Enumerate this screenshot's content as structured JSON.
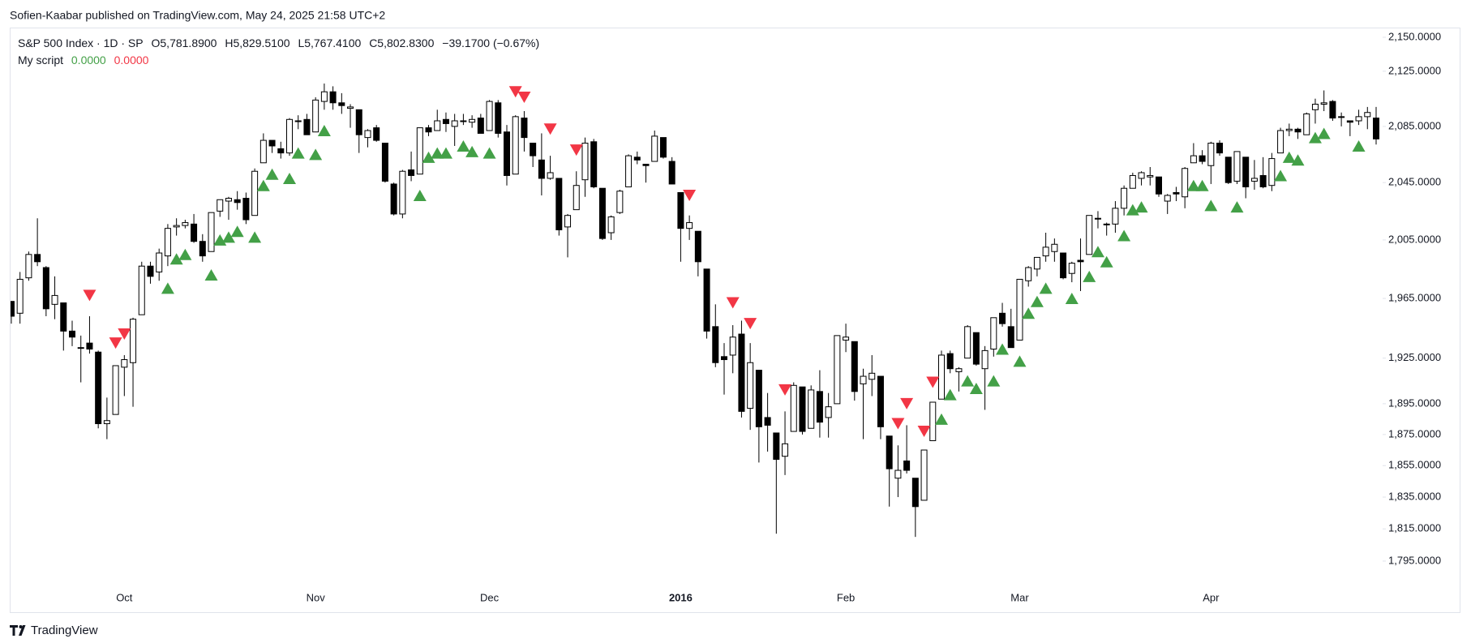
{
  "header": {
    "attribution": "Sofien-Kaabar published on TradingView.com, May 24, 2025 21:58 UTC+2",
    "brand": "TradingView"
  },
  "chart_data": {
    "type": "candlestick",
    "legend": {
      "symbol": "S&P 500 Index · 1D · SP",
      "open": "O5,781.8900",
      "high": "H5,829.5100",
      "low": "L5,767.4100",
      "close": "C5,802.8300",
      "change": "−39.1700 (−0.67%)"
    },
    "indicator": {
      "name": "My script",
      "values": [
        "0.0000",
        "0.0000"
      ],
      "colors": [
        "#43a047",
        "#f23645"
      ]
    },
    "up_color": "#ffffff",
    "down_color": "#000000",
    "border_color": "#000000",
    "log_scale": true,
    "grid": false,
    "ylim": [
      1779,
      2156
    ],
    "yticks": [
      {
        "value": 2150,
        "label": "2,150.0000"
      },
      {
        "value": 2125,
        "label": "2,125.0000"
      },
      {
        "value": 2085,
        "label": "2,085.0000"
      },
      {
        "value": 2045,
        "label": "2,045.0000"
      },
      {
        "value": 2005,
        "label": "2,005.0000"
      },
      {
        "value": 1965,
        "label": "1,965.0000"
      },
      {
        "value": 1925,
        "label": "1,925.0000"
      },
      {
        "value": 1895,
        "label": "1,895.0000"
      },
      {
        "value": 1875,
        "label": "1,875.0000"
      },
      {
        "value": 1855,
        "label": "1,855.0000"
      },
      {
        "value": 1835,
        "label": "1,835.0000"
      },
      {
        "value": 1815,
        "label": "1,815.0000"
      },
      {
        "value": 1795,
        "label": "1,795.0000"
      }
    ],
    "categories": [
      null,
      null,
      null,
      null,
      null,
      null,
      null,
      null,
      null,
      null,
      null,
      null,
      null,
      "Oct",
      null,
      null,
      null,
      null,
      null,
      null,
      null,
      null,
      null,
      null,
      null,
      null,
      null,
      null,
      null,
      null,
      null,
      null,
      null,
      null,
      null,
      "Nov",
      null,
      null,
      null,
      null,
      null,
      null,
      null,
      null,
      null,
      null,
      null,
      null,
      null,
      null,
      null,
      null,
      null,
      null,
      null,
      "Dec",
      null,
      null,
      null,
      null,
      null,
      null,
      null,
      null,
      null,
      null,
      null,
      null,
      null,
      null,
      null,
      null,
      null,
      null,
      null,
      null,
      null,
      "2016",
      null,
      null,
      null,
      null,
      null,
      null,
      null,
      null,
      null,
      null,
      null,
      null,
      null,
      null,
      null,
      null,
      null,
      null,
      "Feb",
      null,
      null,
      null,
      null,
      null,
      null,
      null,
      null,
      null,
      null,
      null,
      null,
      null,
      null,
      null,
      null,
      null,
      null,
      null,
      "Mar",
      null,
      null,
      null,
      null,
      null,
      null,
      null,
      null,
      null,
      null,
      null,
      null,
      null,
      null,
      null,
      null,
      null,
      null,
      null,
      null,
      null,
      "Apr",
      null,
      null,
      null,
      null,
      null,
      null,
      null,
      null,
      null,
      null,
      null,
      null,
      null,
      null,
      null,
      null,
      null,
      null,
      null
    ],
    "open": [
      1963,
      1955,
      1979,
      1995,
      1986,
      1961,
      1962,
      1943,
      1932,
      1935,
      1929,
      1882,
      1888,
      1919,
      1922,
      1954,
      1987,
      1983,
      1994,
      2014,
      2015,
      2016,
      2004,
      1997,
      2025,
      2032,
      2033,
      2034,
      2022,
      2059,
      2075,
      2069,
      2066,
      2089,
      2090,
      2081,
      2103,
      2110,
      2102,
      2098,
      2097,
      2077,
      2084,
      2073,
      2044,
      2023,
      2054,
      2051,
      2084,
      2082,
      2090,
      2085,
      2089,
      2088,
      2091,
      2082,
      2102,
      2081,
      2051,
      2091,
      2073,
      2061,
      2048,
      2048,
      2014,
      2026,
      2047,
      2074,
      2041,
      2010,
      2024,
      2042,
      2063,
      2058,
      2060,
      2077,
      2060,
      2038,
      2013,
      2011,
      1985,
      1946,
      1926,
      1927,
      1941,
      1892,
      1917,
      1886,
      1876,
      1861,
      1877,
      1906,
      1879,
      1903,
      1886,
      1895,
      1937,
      1936,
      1908,
      1911,
      1913,
      1874,
      1847,
      1858,
      1847,
      1833,
      1871,
      1898,
      1928,
      1916,
      1925,
      1942,
      1918,
      1931,
      1955,
      1946,
      1937,
      1977,
      1985,
      1994,
      1997,
      1996,
      1982,
      1991,
      1995,
      2020,
      2016,
      2016,
      2027,
      2041,
      2048,
      2049,
      2049,
      2032,
      2038,
      2035,
      2059,
      2064,
      2057,
      2073,
      2063,
      2046,
      2063,
      2046,
      2050,
      2043,
      2066,
      2082,
      2083,
      2079,
      2097,
      2101,
      2103,
      2092,
      2089,
      2089,
      2092,
      2091
    ],
    "high": [
      1963,
      1983,
      1997,
      2020,
      1987,
      1980,
      1962,
      1950,
      1940,
      1953,
      1930,
      1899,
      1920,
      1927,
      1952,
      1990,
      1990,
      1999,
      2016,
      2020,
      2019,
      2023,
      2009,
      2024,
      2033,
      2035,
      2039,
      2038,
      2055,
      2080,
      2075,
      2074,
      2091,
      2093,
      2094,
      2106,
      2116,
      2114,
      2109,
      2101,
      2097,
      2083,
      2086,
      2073,
      2045,
      2054,
      2067,
      2084,
      2086,
      2097,
      2095,
      2094,
      2094,
      2093,
      2094,
      2104,
      2104,
      2086,
      2093,
      2096,
      2073,
      2080,
      2064,
      2048,
      2023,
      2053,
      2077,
      2076,
      2041,
      2022,
      2040,
      2065,
      2067,
      2058,
      2082,
      2077,
      2063,
      2038,
      2022,
      2011,
      1985,
      1961,
      1935,
      1947,
      1950,
      1935,
      1917,
      1902,
      1876,
      1890,
      1909,
      1906,
      1907,
      1917,
      1902,
      1940,
      1948,
      1936,
      1918,
      1927,
      1913,
      1874,
      1868,
      1881,
      1847,
      1865,
      1896,
      1930,
      1930,
      1919,
      1947,
      1942,
      1933,
      1952,
      1962,
      1958,
      1978,
      1987,
      1993,
      2010,
      2006,
      1996,
      1990,
      2006,
      2022,
      2025,
      2017,
      2032,
      2043,
      2052,
      2053,
      2056,
      2049,
      2037,
      2042,
      2056,
      2073,
      2068,
      2074,
      2075,
      2063,
      2067,
      2063,
      2061,
      2063,
      2066,
      2084,
      2087,
      2084,
      2095,
      2105,
      2111,
      2104,
      2095,
      2089,
      2097,
      2099,
      2099
    ],
    "low": [
      1948,
      1948,
      1977,
      1987,
      1953,
      1951,
      1930,
      1933,
      1909,
      1928,
      1879,
      1872,
      1888,
      1900,
      1893,
      1954,
      1975,
      1977,
      1987,
      2008,
      2013,
      2003,
      1990,
      1997,
      2021,
      2019,
      2026,
      2016,
      2022,
      2059,
      2066,
      2062,
      2064,
      2083,
      2079,
      2081,
      2097,
      2097,
      2094,
      2084,
      2066,
      2070,
      2074,
      2045,
      2022,
      2020,
      2046,
      2051,
      2078,
      2082,
      2081,
      2071,
      2086,
      2084,
      2080,
      2082,
      2077,
      2043,
      2051,
      2067,
      2056,
      2036,
      2047,
      2008,
      1993,
      2026,
      2035,
      2041,
      2005,
      2005,
      2023,
      2042,
      2058,
      2045,
      2060,
      2062,
      2044,
      1990,
      2005,
      1980,
      1938,
      1919,
      1901,
      1915,
      1886,
      1878,
      1857,
      1864,
      1812,
      1849,
      1877,
      1875,
      1879,
      1873,
      1873,
      1895,
      1929,
      1897,
      1872,
      1900,
      1872,
      1829,
      1835,
      1850,
      1810,
      1833,
      1871,
      1898,
      1915,
      1903,
      1925,
      1920,
      1891,
      1926,
      1946,
      1932,
      1937,
      1973,
      1980,
      1990,
      1990,
      1978,
      1976,
      1970,
      1995,
      2013,
      2008,
      2010,
      2022,
      2041,
      2043,
      2043,
      2035,
      2023,
      2032,
      2027,
      2059,
      2058,
      2044,
      2064,
      2044,
      2044,
      2034,
      2040,
      2041,
      2039,
      2066,
      2078,
      2076,
      2079,
      2087,
      2096,
      2089,
      2085,
      2078,
      2086,
      2083,
      2072
    ],
    "close": [
      1953,
      1978,
      1995,
      1990,
      1958,
      1967,
      1943,
      1939,
      1932,
      1931,
      1882,
      1884,
      1920,
      1924,
      1951,
      1987,
      1980,
      1996,
      2013,
      2015,
      2017,
      2004,
      1994,
      2024,
      2033,
      2034,
      2031,
      2019,
      2053,
      2075,
      2071,
      2066,
      2090,
      2089,
      2079,
      2104,
      2110,
      2102,
      2100,
      2099,
      2079,
      2082,
      2075,
      2046,
      2023,
      2053,
      2050,
      2084,
      2081,
      2089,
      2087,
      2089,
      2089,
      2090,
      2080,
      2103,
      2080,
      2050,
      2092,
      2077,
      2064,
      2048,
      2052,
      2012,
      2022,
      2043,
      2073,
      2042,
      2006,
      2021,
      2039,
      2064,
      2061,
      2057,
      2078,
      2063,
      2044,
      2013,
      2017,
      1990,
      1943,
      1922,
      1924,
      1939,
      1890,
      1922,
      1880,
      1881,
      1859,
      1869,
      1907,
      1877,
      1904,
      1883,
      1893,
      1940,
      1939,
      1903,
      1913,
      1915,
      1880,
      1853,
      1852,
      1852,
      1829,
      1865,
      1896,
      1927,
      1918,
      1918,
      1946,
      1921,
      1930,
      1952,
      1948,
      1932,
      1978,
      1986,
      1993,
      2000,
      2002,
      1979,
      1989,
      1990,
      2022,
      2020,
      2016,
      2027,
      2041,
      2050,
      2052,
      2050,
      2037,
      2036,
      2037,
      2055,
      2064,
      2060,
      2073,
      2066,
      2045,
      2067,
      2042,
      2048,
      2042,
      2062,
      2082,
      2083,
      2081,
      2094,
      2101,
      2102,
      2091,
      2092,
      2088,
      2092,
      2095,
      2076
    ],
    "markers": [
      {
        "shape": "triangle-down",
        "color": "#f23645",
        "x": [
          9,
          12,
          13,
          58,
          59,
          62,
          65,
          78,
          83,
          85,
          89,
          102,
          103,
          105,
          106
        ],
        "values": [
          1967,
          1935,
          1941,
          2110,
          2106,
          2083,
          2068,
          2036,
          1962,
          1948,
          1904,
          1882,
          1895,
          1877,
          1909
        ]
      },
      {
        "shape": "triangle-up",
        "color": "#43a047",
        "x": [
          18,
          19,
          20,
          23,
          24,
          25,
          26,
          28,
          29,
          30,
          32,
          33,
          35,
          36,
          47,
          48,
          49,
          50,
          52,
          53,
          55,
          107,
          108,
          110,
          111,
          113,
          114,
          116,
          117,
          118,
          119,
          122,
          124,
          125,
          126,
          128,
          129,
          130,
          136,
          137,
          138,
          141,
          146,
          147,
          148,
          150,
          151,
          155
        ],
        "values": [
          1972,
          1992,
          1995,
          1981,
          2005,
          2007,
          2011,
          2007,
          2043,
          2051,
          2048,
          2066,
          2065,
          2082,
          2036,
          2063,
          2066,
          2066,
          2071,
          2067,
          2066,
          1885,
          1901,
          1910,
          1905,
          1910,
          1931,
          1923,
          1955,
          1963,
          1972,
          1965,
          1980,
          1997,
          1990,
          2008,
          2026,
          2028,
          2043,
          2043,
          2029,
          2028,
          2050,
          2063,
          2061,
          2077,
          2080,
          2071
        ]
      }
    ]
  }
}
